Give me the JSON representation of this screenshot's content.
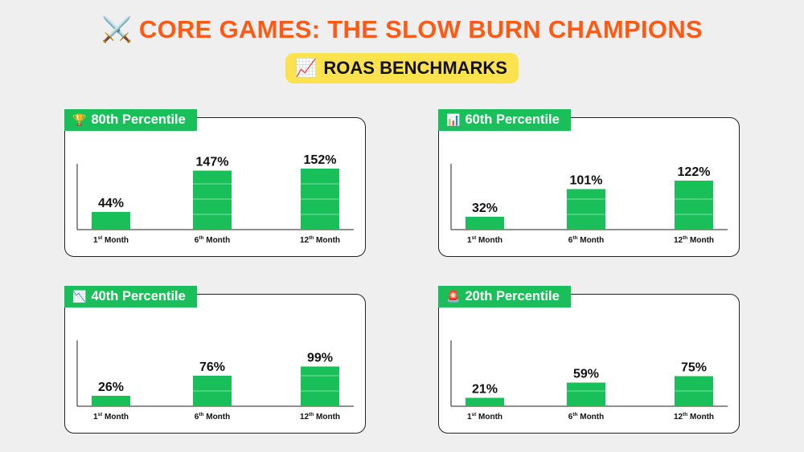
{
  "header": {
    "title_icon": "crossed-swords-icon",
    "title_emoji": "⚔️",
    "title": "CORE GAMES: THE SLOW BURN CHAMPIONS",
    "subtitle_icon": "chart-increasing-icon",
    "subtitle_emoji": "📈",
    "subtitle": "ROAS BENCHMARKS"
  },
  "colors": {
    "title": "#ff5a14",
    "badge": "#fde24f",
    "bar": "#19c05a",
    "bar_divider": "#7fe0a4"
  },
  "chart_data": [
    {
      "type": "bar",
      "title": "80th Percentile",
      "title_icon": "trophy-icon",
      "title_emoji": "🏆",
      "categories": [
        {
          "num": "1",
          "sup": "st",
          "label": "Month"
        },
        {
          "num": "6",
          "sup": "th",
          "label": "Month"
        },
        {
          "num": "12",
          "sup": "th",
          "label": "Month"
        }
      ],
      "values": [
        44,
        147,
        152
      ],
      "data_labels": [
        "44%",
        "147%",
        "152%"
      ]
    },
    {
      "type": "bar",
      "title": "60th Percentile",
      "title_icon": "bar-chart-icon",
      "title_emoji": "📊",
      "categories": [
        {
          "num": "1",
          "sup": "st",
          "label": "Month"
        },
        {
          "num": "6",
          "sup": "th",
          "label": "Month"
        },
        {
          "num": "12",
          "sup": "th",
          "label": "Month"
        }
      ],
      "values": [
        32,
        101,
        122
      ],
      "data_labels": [
        "32%",
        "101%",
        "122%"
      ]
    },
    {
      "type": "bar",
      "title": "40th Percentile",
      "title_icon": "chart-decreasing-icon",
      "title_emoji": "📉",
      "categories": [
        {
          "num": "1",
          "sup": "st",
          "label": "Month"
        },
        {
          "num": "6",
          "sup": "th",
          "label": "Month"
        },
        {
          "num": "12",
          "sup": "th",
          "label": "Month"
        }
      ],
      "values": [
        26,
        76,
        99
      ],
      "data_labels": [
        "26%",
        "76%",
        "99%"
      ]
    },
    {
      "type": "bar",
      "title": "20th Percentile",
      "title_icon": "rotating-light-icon",
      "title_emoji": "🚨",
      "categories": [
        {
          "num": "1",
          "sup": "st",
          "label": "Month"
        },
        {
          "num": "6",
          "sup": "th",
          "label": "Month"
        },
        {
          "num": "12",
          "sup": "th",
          "label": "Month"
        }
      ],
      "values": [
        21,
        59,
        75
      ],
      "data_labels": [
        "21%",
        "59%",
        "75%"
      ]
    }
  ]
}
